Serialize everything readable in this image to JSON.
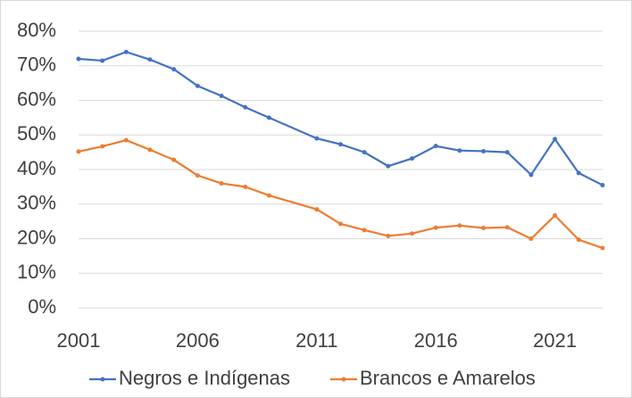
{
  "chart_data": {
    "type": "line",
    "x": [
      2001,
      2002,
      2003,
      2004,
      2005,
      2006,
      2007,
      2008,
      2009,
      2011,
      2012,
      2013,
      2014,
      2015,
      2016,
      2017,
      2018,
      2019,
      2020,
      2021,
      2022,
      2023
    ],
    "series": [
      {
        "name": "Negros e Indígenas",
        "color": "#4472c4",
        "values": [
          72,
          71.5,
          74,
          71.8,
          69,
          64.2,
          61.3,
          58,
          55,
          49,
          47.3,
          45,
          41,
          43.2,
          46.8,
          45.5,
          45.3,
          45,
          38.5,
          48.8,
          39,
          35.5
        ]
      },
      {
        "name": "Brancos e Amarelos",
        "color": "#ed7d31",
        "values": [
          45.2,
          46.7,
          48.5,
          45.7,
          42.8,
          38.3,
          36,
          35,
          32.5,
          28.5,
          24.3,
          22.5,
          20.8,
          21.5,
          23.2,
          23.8,
          23.1,
          23.3,
          20,
          26.7,
          19.7,
          17.3
        ]
      }
    ],
    "xlim": [
      2001,
      2023
    ],
    "xticks": [
      2001,
      2006,
      2011,
      2016,
      2021
    ],
    "ylim": [
      0,
      80
    ],
    "yticks": [
      {
        "value": 0,
        "label": "0%"
      },
      {
        "value": 10,
        "label": "10%"
      },
      {
        "value": 20,
        "label": "20%"
      },
      {
        "value": 30,
        "label": "30%"
      },
      {
        "value": 40,
        "label": "40%"
      },
      {
        "value": 50,
        "label": "50%"
      },
      {
        "value": 60,
        "label": "60%"
      },
      {
        "value": 70,
        "label": "70%"
      },
      {
        "value": 80,
        "label": "80%"
      }
    ],
    "grid": true,
    "legend": "bottom"
  }
}
